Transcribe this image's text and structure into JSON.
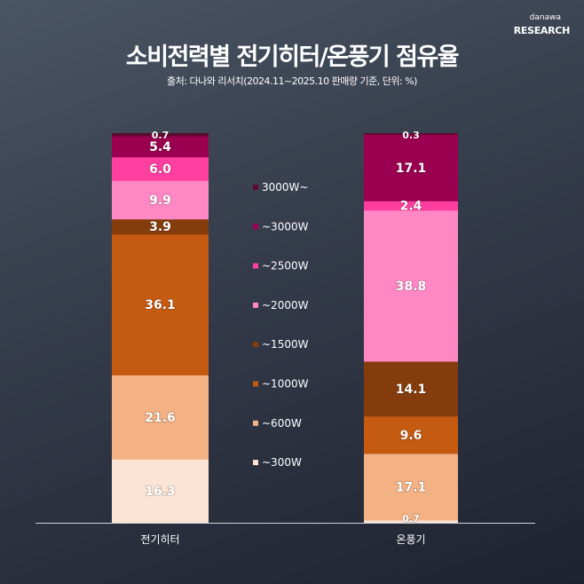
{
  "logo": {
    "line1": "danawa",
    "line2": "RESEARCH"
  },
  "chart_data": {
    "type": "bar",
    "stacked": true,
    "title": "소비전력별 전기히터/온풍기 점유율",
    "subtitle": "출처: 다나와 리서치(2024.11~2025.10 판매량 기준, 단위: %)",
    "categories": [
      "전기히터",
      "온풍기"
    ],
    "ylim": [
      0,
      100
    ],
    "legend_position": "center",
    "series": [
      {
        "name": "~300W",
        "color": "#fbe4d5",
        "values": [
          16.3,
          0.7
        ]
      },
      {
        "name": "~600W",
        "color": "#f4b183",
        "values": [
          21.6,
          17.1
        ]
      },
      {
        "name": "~1000W",
        "color": "#c55a11",
        "values": [
          36.1,
          9.6
        ]
      },
      {
        "name": "~1500W",
        "color": "#843c0c",
        "values": [
          3.9,
          14.1
        ]
      },
      {
        "name": "~2000W",
        "color": "#ff88c4",
        "values": [
          9.9,
          38.8
        ]
      },
      {
        "name": "~2500W",
        "color": "#ff3fa0",
        "values": [
          6.0,
          2.4
        ]
      },
      {
        "name": "~3000W",
        "color": "#9b0050",
        "values": [
          5.4,
          17.1
        ]
      },
      {
        "name": "3000W~",
        "color": "#5c0a2e",
        "values": [
          0.7,
          0.3
        ]
      }
    ]
  }
}
